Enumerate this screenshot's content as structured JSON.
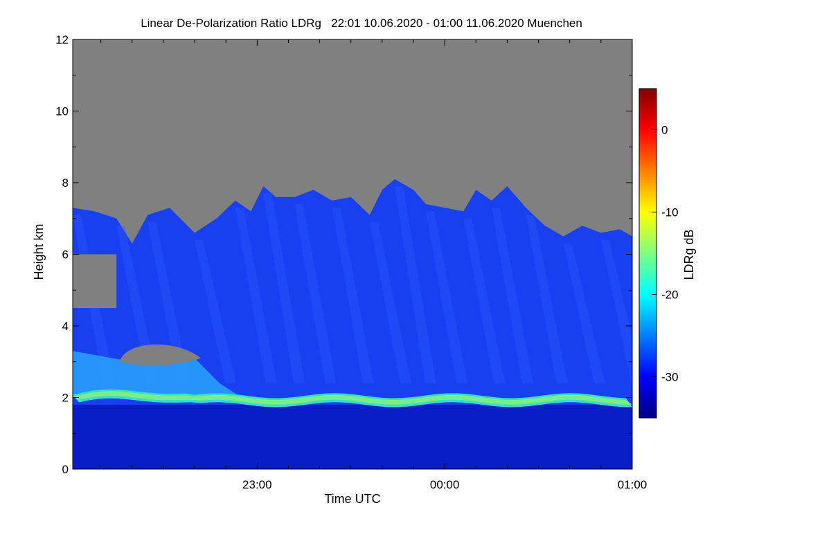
{
  "chart_data": {
    "type": "heatmap",
    "title": "Linear De-Polarization Ratio LDRg   22:01 10.06.2020 - 01:00 11.06.2020 Muenchen",
    "xlabel": "Time UTC",
    "ylabel": "Height km",
    "x_unit": "minutes after 22:00 UTC",
    "xlim": [
      1,
      180
    ],
    "ylim": [
      0,
      12
    ],
    "x_major_ticks": [
      {
        "value": 60,
        "label": "23:00"
      },
      {
        "value": 120,
        "label": "00:00"
      },
      {
        "value": 180,
        "label": "01:00"
      }
    ],
    "x_minor_tick_values": [
      10,
      20,
      30,
      40,
      50,
      70,
      80,
      90,
      100,
      110,
      130,
      140,
      150,
      160,
      170
    ],
    "y_ticks": [
      {
        "value": 0,
        "label": "0"
      },
      {
        "value": 2,
        "label": "2"
      },
      {
        "value": 4,
        "label": "4"
      },
      {
        "value": 6,
        "label": "6"
      },
      {
        "value": 8,
        "label": "8"
      },
      {
        "value": 10,
        "label": "10"
      },
      {
        "value": 12,
        "label": "12"
      }
    ],
    "colorbar": {
      "label": "LDRg dB",
      "range": [
        -35,
        5
      ],
      "ticks": [
        {
          "value": 0,
          "label": "0"
        },
        {
          "value": -10,
          "label": "-10"
        },
        {
          "value": -20,
          "label": "-20"
        },
        {
          "value": -30,
          "label": "-30"
        }
      ],
      "colormap": [
        "#00007f",
        "#0000ff",
        "#007fff",
        "#00ffff",
        "#7fff7f",
        "#ffff00",
        "#ff7f00",
        "#ff0000",
        "#7f0000"
      ]
    },
    "no_data_color": "#808080",
    "cloud_top_km": [
      [
        1,
        7.3
      ],
      [
        8,
        7.2
      ],
      [
        15,
        7.0
      ],
      [
        20,
        6.3
      ],
      [
        25,
        7.1
      ],
      [
        32,
        7.3
      ],
      [
        40,
        6.6
      ],
      [
        47,
        7.0
      ],
      [
        53,
        7.5
      ],
      [
        58,
        7.2
      ],
      [
        62,
        7.9
      ],
      [
        66,
        7.6
      ],
      [
        72,
        7.6
      ],
      [
        78,
        7.8
      ],
      [
        84,
        7.5
      ],
      [
        90,
        7.6
      ],
      [
        96,
        7.1
      ],
      [
        100,
        7.8
      ],
      [
        104,
        8.1
      ],
      [
        110,
        7.8
      ],
      [
        114,
        7.4
      ],
      [
        120,
        7.3
      ],
      [
        126,
        7.2
      ],
      [
        130,
        7.8
      ],
      [
        135,
        7.5
      ],
      [
        140,
        7.9
      ],
      [
        146,
        7.3
      ],
      [
        152,
        6.8
      ],
      [
        158,
        6.5
      ],
      [
        164,
        6.8
      ],
      [
        170,
        6.6
      ],
      [
        176,
        6.7
      ],
      [
        180,
        6.5
      ]
    ],
    "layers": [
      {
        "name": "boundary layer top",
        "time_range": [
          1,
          180
        ],
        "height_km": [
          1.8,
          2.05
        ],
        "ldr_db": -18
      },
      {
        "name": "depolarizing aerosol/cloud",
        "time_range": [
          1,
          55
        ],
        "height_km": [
          2.0,
          3.3
        ],
        "ldr_db": -24
      },
      {
        "name": "no-data gap",
        "time_range": [
          16,
          42
        ],
        "height_km": [
          2.9,
          3.6
        ]
      },
      {
        "name": "no-data gap",
        "time_range": [
          1,
          15
        ],
        "height_km": [
          4.5,
          6.0
        ]
      },
      {
        "name": "boundary layer",
        "time_range": [
          1,
          180
        ],
        "height_km": [
          0,
          1.8
        ],
        "ldr_db": -33
      },
      {
        "name": "ice cloud / fall streaks",
        "time_range": [
          1,
          180
        ],
        "height_km": [
          2.1,
          8.2
        ],
        "ldr_db": -30
      }
    ]
  }
}
